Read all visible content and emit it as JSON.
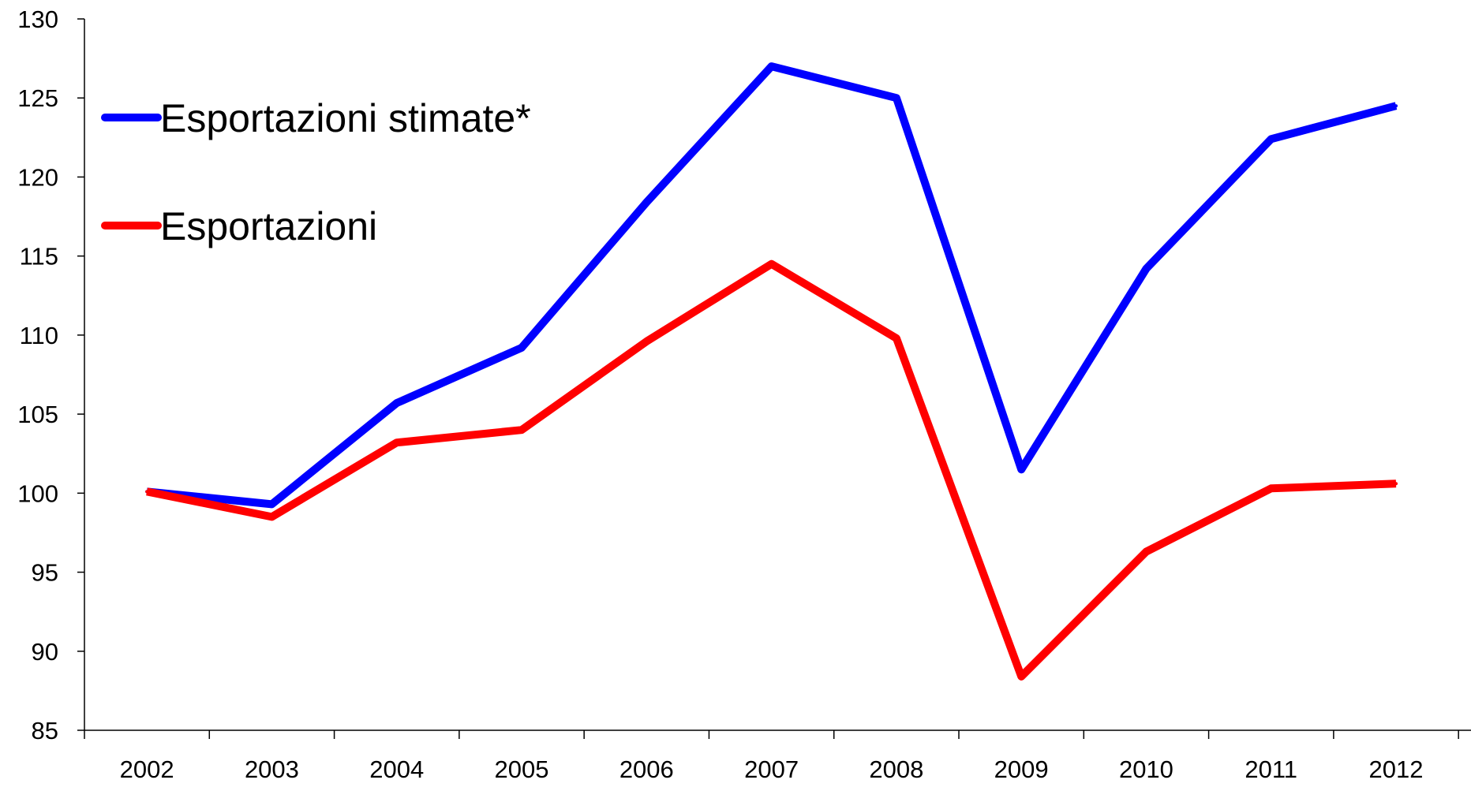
{
  "chart_data": {
    "type": "line",
    "categories": [
      "2002",
      "2003",
      "2004",
      "2005",
      "2006",
      "2007",
      "2008",
      "2009",
      "2010",
      "2011",
      "2012"
    ],
    "series": [
      {
        "name": "Esportazioni stimate*",
        "color": "#0000ff",
        "values": [
          100.1,
          99.3,
          105.7,
          109.2,
          118.4,
          127.0,
          125.0,
          101.5,
          114.2,
          122.4,
          124.5
        ]
      },
      {
        "name": "Esportazioni",
        "color": "#ff0000",
        "values": [
          100.1,
          98.5,
          103.2,
          104.0,
          109.6,
          114.5,
          109.8,
          88.4,
          96.3,
          100.3,
          100.6
        ]
      }
    ],
    "ylim": [
      85,
      130
    ],
    "yticks": [
      85,
      90,
      95,
      100,
      105,
      110,
      115,
      120,
      125,
      130
    ],
    "title": "",
    "xlabel": "",
    "ylabel": "",
    "grid": false,
    "legend_position": "top-left, inside plot"
  }
}
